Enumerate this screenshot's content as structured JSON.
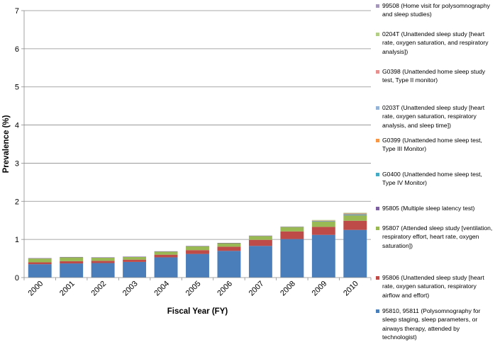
{
  "chart_data": {
    "type": "bar",
    "stacked": true,
    "title": "",
    "xlabel": "Fiscal Year (FY)",
    "ylabel": "Prevalence (%)",
    "ylim": [
      0,
      7
    ],
    "yticks": [
      "0",
      "1",
      "2",
      "3",
      "4",
      "5",
      "6",
      "7"
    ],
    "grid": true,
    "legend_position": "right",
    "categories": [
      "2000",
      "2001",
      "2002",
      "2003",
      "2004",
      "2005",
      "2006",
      "2007",
      "2008",
      "2009",
      "2010"
    ],
    "series": [
      {
        "name": "95810, 95811 (Polysomnography for sleep staging, sleep parameters, or airways therapy, attended by technologist)",
        "color": "#4a7ebb",
        "values": [
          0.35,
          0.37,
          0.38,
          0.41,
          0.53,
          0.62,
          0.7,
          0.83,
          1.01,
          1.12,
          1.25
        ]
      },
      {
        "name": "95806 (Unattended sleep study [heart rate, oxygen saturation, respiratory airflow and effort)",
        "color": "#be4b48",
        "values": [
          0.05,
          0.06,
          0.06,
          0.06,
          0.07,
          0.1,
          0.11,
          0.16,
          0.2,
          0.21,
          0.24
        ]
      },
      {
        "name": "95807 (Attended sleep study [ventilation, respiratory effort, heart rate, oxygen saturation])",
        "color": "#98b954",
        "values": [
          0.1,
          0.1,
          0.08,
          0.07,
          0.08,
          0.1,
          0.09,
          0.1,
          0.11,
          0.14,
          0.14
        ]
      },
      {
        "name": "95805 (Multiple sleep latency test)",
        "color": "#7d60a0",
        "values": [
          0.01,
          0.01,
          0.01,
          0.01,
          0.01,
          0.01,
          0.01,
          0.01,
          0.01,
          0.01,
          0.01
        ]
      },
      {
        "name": "G0400 (Unattended home sleep test, Type IV Monitor)",
        "color": "#46aac5",
        "values": [
          0,
          0,
          0,
          0,
          0,
          0,
          0,
          0,
          0,
          0.01,
          0.02
        ]
      },
      {
        "name": "G0399 (Unattended home sleep test, Type III Monitor)",
        "color": "#f79646",
        "values": [
          0,
          0,
          0,
          0,
          0,
          0,
          0,
          0,
          0,
          0.01,
          0.02
        ]
      },
      {
        "name": "0203T (Unattended sleep study [heart rate, oxygen saturation, respiratory analysis, and sleep time])",
        "color": "#95b3d7",
        "values": [
          0,
          0,
          0,
          0,
          0,
          0,
          0,
          0,
          0,
          0,
          0.01
        ]
      },
      {
        "name": "G0398 (Unattended home sleep study test, Type II monitor)",
        "color": "#e6908f",
        "values": [
          0,
          0,
          0,
          0,
          0,
          0,
          0,
          0,
          0,
          0,
          0
        ]
      },
      {
        "name": "0204T (Unattended sleep study [heart rate, oxygen saturation, and respiratory analysis])",
        "color": "#b3cf87",
        "values": [
          0,
          0,
          0,
          0,
          0,
          0,
          0,
          0,
          0.01,
          0.01,
          0.01
        ]
      },
      {
        "name": "99508 (Home visit for polysomnography and sleep studies)",
        "color": "#a497ba",
        "values": [
          0,
          0,
          0,
          0,
          0,
          0,
          0,
          0,
          0,
          0,
          0
        ]
      }
    ]
  }
}
